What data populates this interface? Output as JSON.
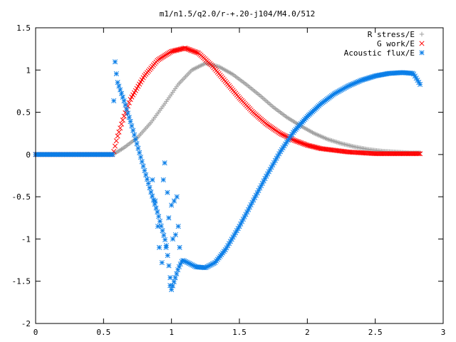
{
  "chart_data": {
    "type": "scatter",
    "title": "m1/n1.5/q2.0/r-+.20-j104/M4.0/512",
    "xlabel": "",
    "ylabel": "",
    "xlim": [
      0,
      3
    ],
    "ylim": [
      -2,
      1.5
    ],
    "xticks": [
      "0",
      "0.5",
      "1",
      "1.5",
      "2",
      "2.5",
      "3"
    ],
    "yticks": [
      "-2",
      "-1.5",
      "-1",
      "-0.5",
      "0",
      "0.5",
      "1",
      "1.5"
    ],
    "grid": false,
    "legend_position": "top-right",
    "series": [
      {
        "name": "R stress/E",
        "marker": "plus",
        "color": "#a0a0a0",
        "x": [
          0,
          0.25,
          0.5,
          0.57,
          0.65,
          0.75,
          0.85,
          0.95,
          1.05,
          1.15,
          1.25,
          1.35,
          1.45,
          1.55,
          1.65,
          1.75,
          1.85,
          1.95,
          2.05,
          2.15,
          2.25,
          2.35,
          2.45,
          2.55,
          2.65,
          2.75,
          2.83
        ],
        "y": [
          0,
          0,
          0,
          0,
          0.08,
          0.2,
          0.38,
          0.6,
          0.83,
          1.0,
          1.08,
          1.04,
          0.95,
          0.83,
          0.7,
          0.56,
          0.44,
          0.34,
          0.25,
          0.18,
          0.13,
          0.09,
          0.06,
          0.04,
          0.03,
          0.02,
          0.02
        ]
      },
      {
        "name": "G work/E",
        "marker": "cross",
        "color": "#ff0000",
        "x": [
          0,
          0.25,
          0.5,
          0.57,
          0.6,
          0.65,
          0.7,
          0.8,
          0.9,
          1.0,
          1.1,
          1.2,
          1.3,
          1.4,
          1.5,
          1.6,
          1.7,
          1.8,
          1.9,
          2.0,
          2.1,
          2.2,
          2.3,
          2.4,
          2.5,
          2.6,
          2.7,
          2.83
        ],
        "y": [
          0,
          0,
          0,
          0,
          0.2,
          0.45,
          0.66,
          0.93,
          1.12,
          1.22,
          1.26,
          1.2,
          1.05,
          0.86,
          0.67,
          0.5,
          0.36,
          0.25,
          0.17,
          0.11,
          0.07,
          0.05,
          0.03,
          0.02,
          0.01,
          0.01,
          0.01,
          0.01
        ]
      },
      {
        "name": "Acoustic flux/E",
        "marker": "star",
        "color": "#0a7ee8",
        "x": [
          0,
          0.25,
          0.5,
          0.57,
          0.58,
          0.6,
          0.65,
          0.7,
          0.75,
          0.8,
          0.85,
          0.9,
          0.93,
          0.96,
          0.98,
          1.0,
          1.02,
          1.05,
          1.08,
          1.12,
          1.18,
          1.25,
          1.32,
          1.4,
          1.5,
          1.6,
          1.7,
          1.8,
          1.9,
          2.0,
          2.1,
          2.2,
          2.3,
          2.4,
          2.5,
          2.6,
          2.7,
          2.78,
          2.83
        ],
        "y": [
          0,
          0,
          0,
          0,
          1.17,
          0.87,
          0.64,
          0.38,
          0.1,
          -0.18,
          -0.45,
          -0.7,
          -0.88,
          -1.05,
          -1.3,
          -1.6,
          -1.5,
          -1.35,
          -1.25,
          -1.28,
          -1.33,
          -1.34,
          -1.28,
          -1.12,
          -0.85,
          -0.55,
          -0.25,
          0.03,
          0.27,
          0.45,
          0.6,
          0.72,
          0.81,
          0.88,
          0.93,
          0.96,
          0.97,
          0.96,
          0.83
        ]
      },
      {
        "name": "",
        "marker": "star",
        "color": "#0a7ee8",
        "x": [
          0.86,
          0.88,
          0.9,
          0.91,
          0.93,
          0.94,
          0.95,
          0.96,
          0.97,
          0.98,
          0.99,
          1.0,
          1.01,
          1.02,
          1.03,
          1.04,
          1.05,
          1.06
        ],
        "y": [
          -0.3,
          -0.55,
          -0.85,
          -1.1,
          -1.28,
          -0.3,
          -0.1,
          -1.1,
          -0.45,
          -0.75,
          -1.55,
          -0.6,
          -1.0,
          -0.55,
          -0.95,
          -0.5,
          -0.85,
          -1.1
        ]
      }
    ]
  }
}
